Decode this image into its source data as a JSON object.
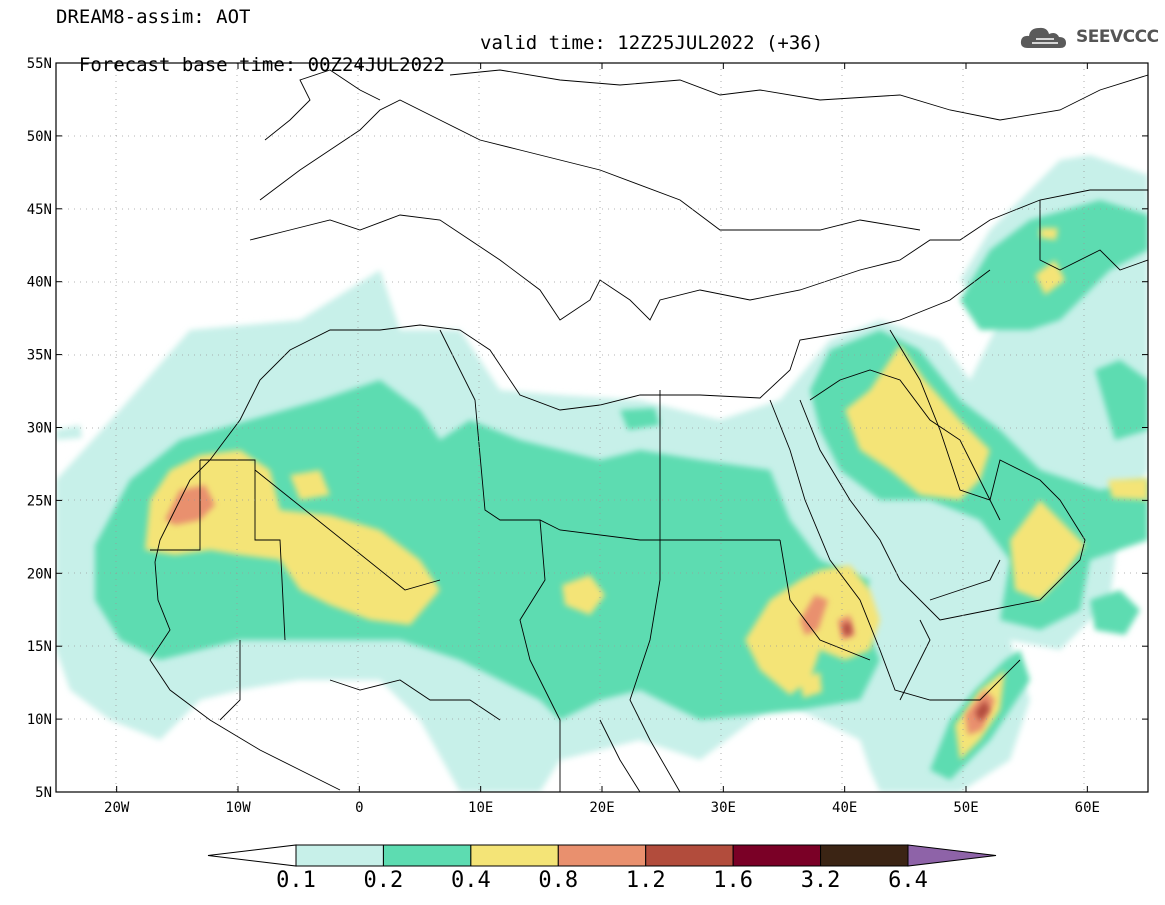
{
  "header": {
    "line1": "DREAM8-assim: AOT",
    "line2_base": "Forecast base time: 00Z24JUL2022",
    "line2_valid": "valid time: 12Z25JUL2022 (+36)"
  },
  "logo": {
    "text": "SEEVCCC",
    "icon": "cloud-icon"
  },
  "map": {
    "lon_range": [
      -25,
      65
    ],
    "lat_range": [
      5,
      55
    ],
    "lat_ticks": [
      "55N",
      "50N",
      "45N",
      "40N",
      "35N",
      "30N",
      "25N",
      "20N",
      "15N",
      "10N",
      "5N"
    ],
    "lon_ticks": [
      "20W",
      "10W",
      "0",
      "10E",
      "20E",
      "30E",
      "40E",
      "50E",
      "60E"
    ]
  },
  "colorbar": {
    "levels": [
      "0.1",
      "0.2",
      "0.4",
      "0.8",
      "1.2",
      "1.6",
      "3.2",
      "6.4"
    ],
    "colors": [
      "#ffffff",
      "#c7f0e9",
      "#5ddcb1",
      "#f4e477",
      "#e9906e",
      "#b24c3c",
      "#7a0026",
      "#3b2414",
      "#8e63a8"
    ]
  }
}
